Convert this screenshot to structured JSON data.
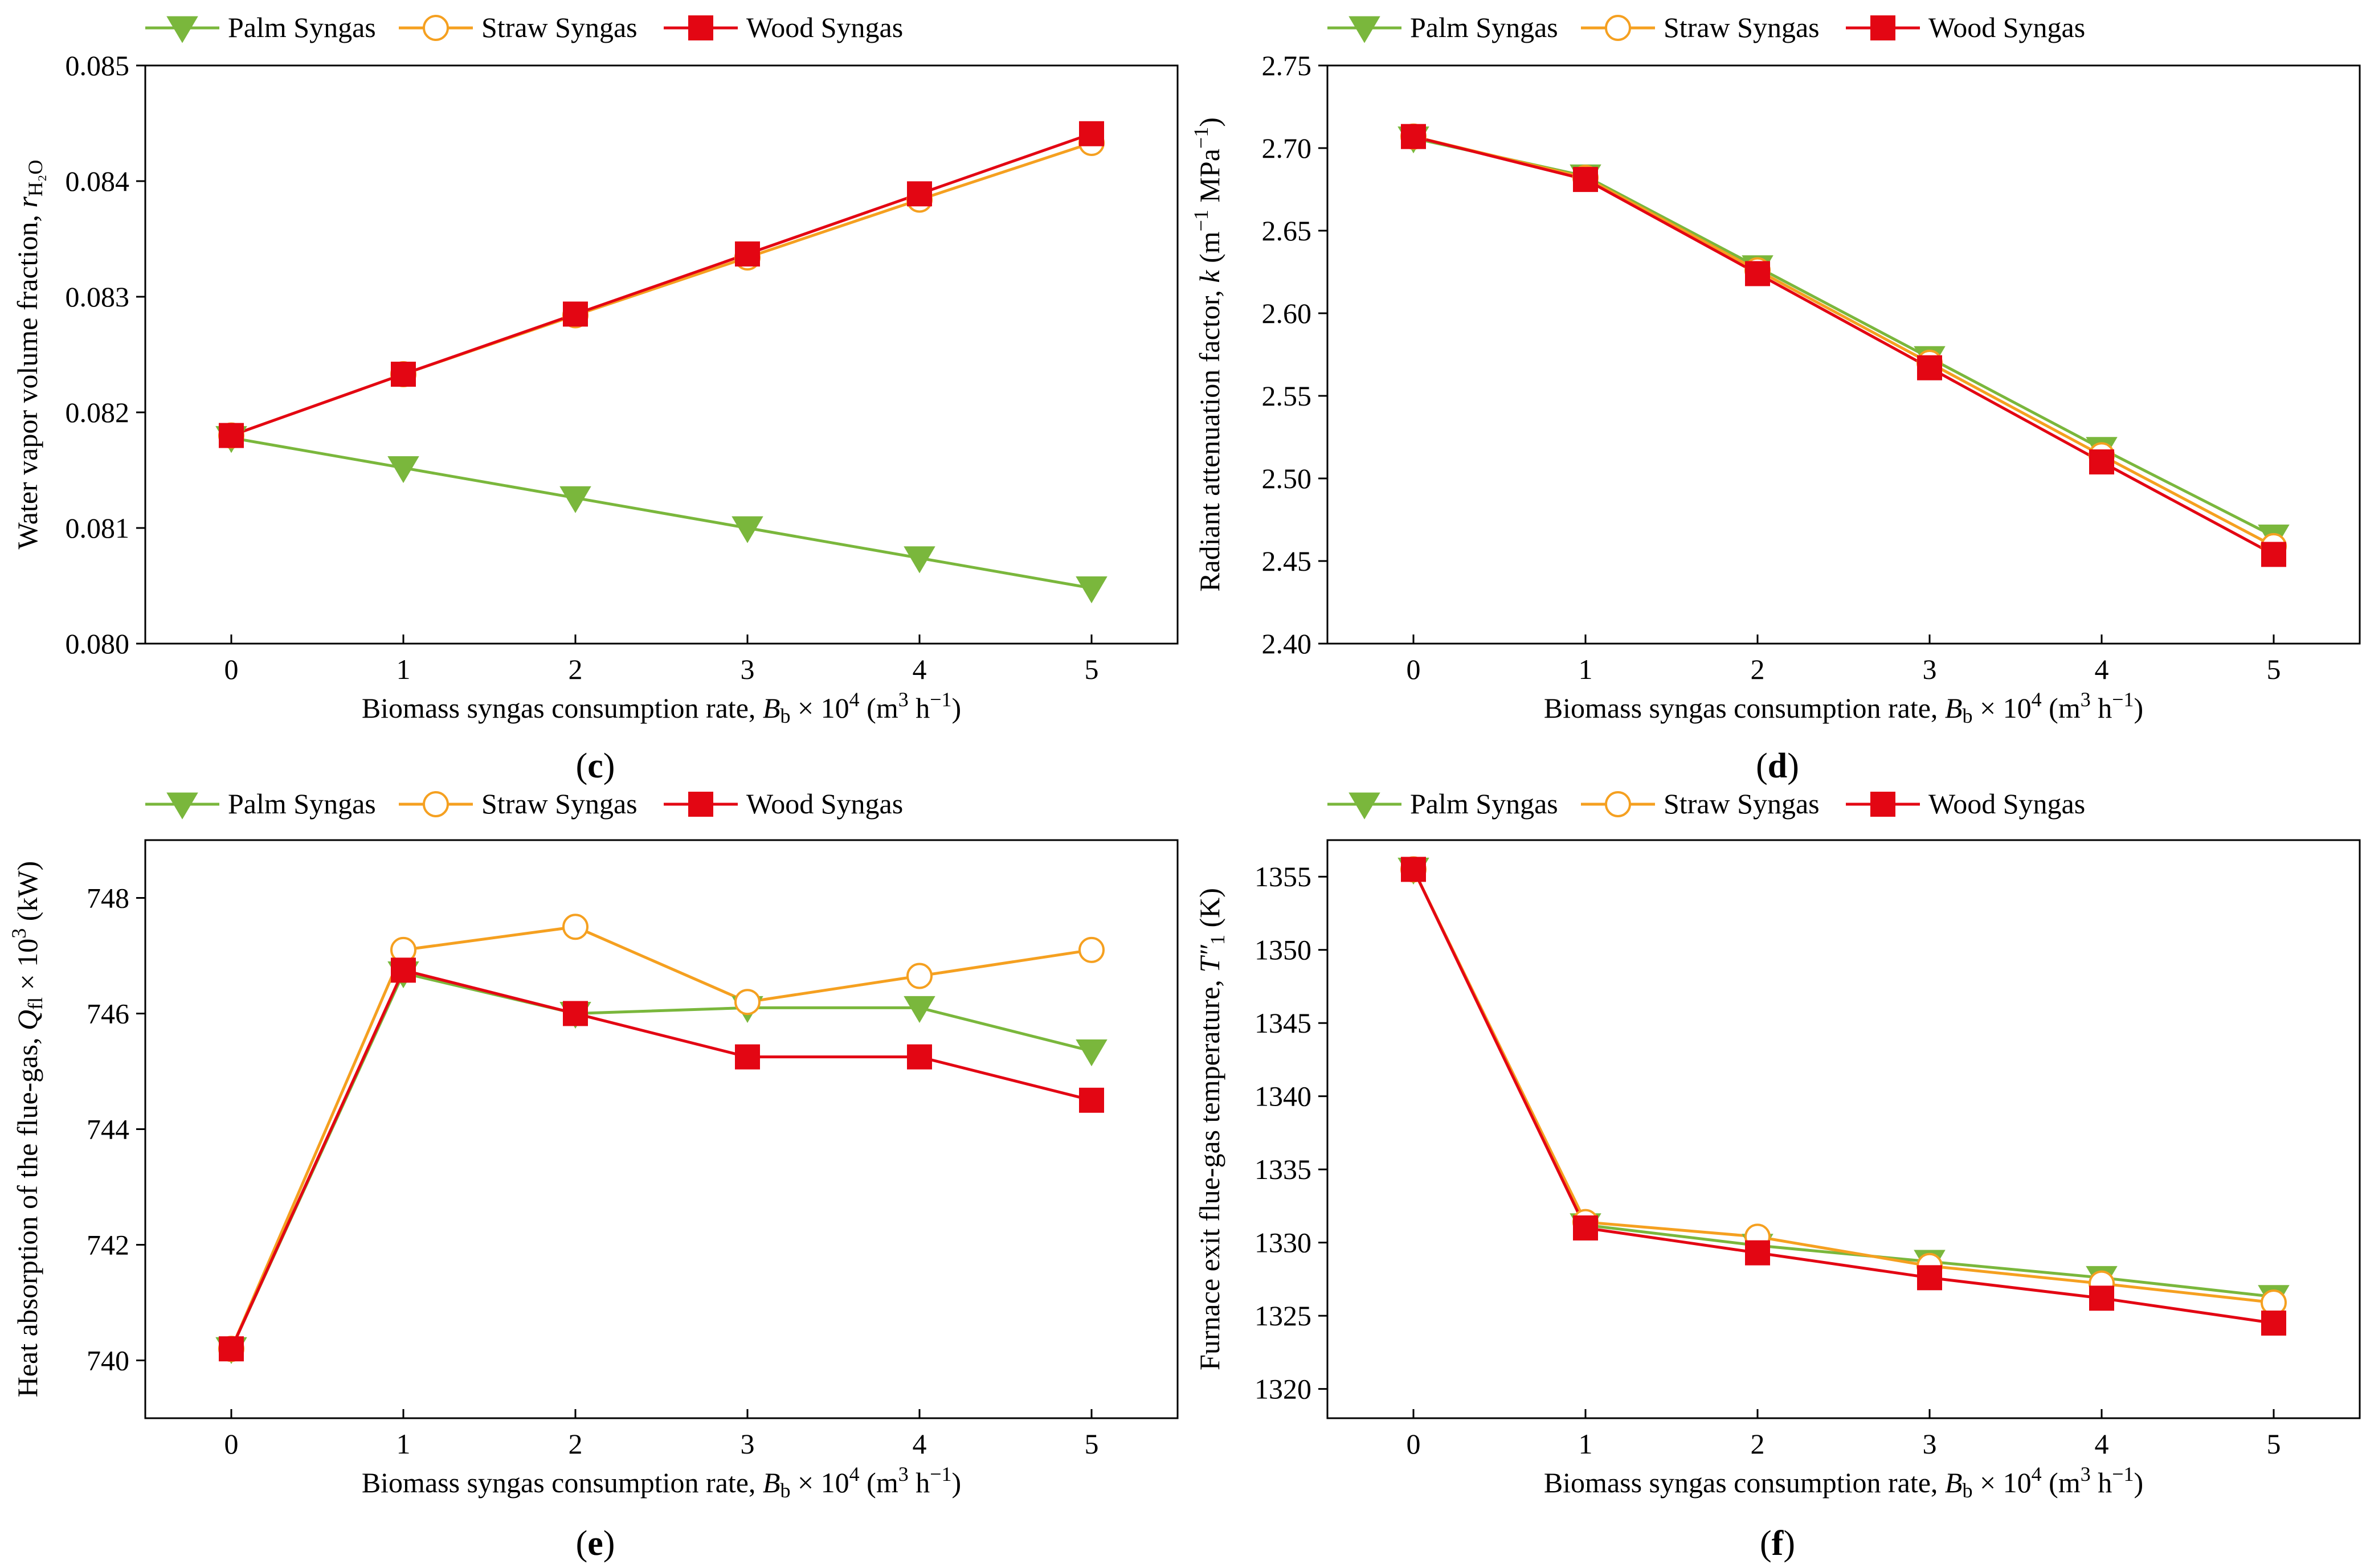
{
  "chart_data": [
    {
      "type": "line",
      "panel_label": "c",
      "x": [
        0,
        1,
        2,
        3,
        4,
        5
      ],
      "xlim": [
        -0.5,
        5.5
      ],
      "ylim": [
        0.08,
        0.085
      ],
      "yticks": [
        "0.080",
        "0.081",
        "0.082",
        "0.083",
        "0.084",
        "0.085"
      ],
      "xlabel": {
        "main": "Biomass syngas consumption rate, ",
        "var": "B",
        "sub": "b",
        "mid": " × 10",
        "sup": "4",
        "unit_a": " (m",
        "unit_sup": "3",
        "unit_b": " h",
        "unit_sup2": "−1",
        "unit_c": ")"
      },
      "ylabel": {
        "main": "Water vapor volume fraction, ",
        "var": "r",
        "sub": "H₂O"
      },
      "legend": [
        "Palm Syngas",
        "Straw Syngas",
        "Wood Syngas"
      ],
      "series": [
        {
          "name": "Palm Syngas",
          "values": [
            0.08178,
            0.08152,
            0.08126,
            0.081,
            0.08074,
            0.08048
          ]
        },
        {
          "name": "Straw Syngas",
          "values": [
            0.0818,
            0.08233,
            0.08284,
            0.08334,
            0.08384,
            0.08433
          ]
        },
        {
          "name": "Wood Syngas",
          "values": [
            0.0818,
            0.08233,
            0.08285,
            0.08337,
            0.08389,
            0.08441
          ]
        }
      ]
    },
    {
      "type": "line",
      "panel_label": "d",
      "x": [
        0,
        1,
        2,
        3,
        4,
        5
      ],
      "xlim": [
        -0.5,
        5.5
      ],
      "ylim": [
        2.4,
        2.75
      ],
      "yticks": [
        "2.40",
        "2.45",
        "2.50",
        "2.55",
        "2.60",
        "2.65",
        "2.70",
        "2.75"
      ],
      "xlabel": {
        "main": "Biomass syngas consumption rate, ",
        "var": "B",
        "sub": "b",
        "mid": " × 10",
        "sup": "4",
        "unit_a": " (m",
        "unit_sup": "3",
        "unit_b": " h",
        "unit_sup2": "−1",
        "unit_c": ")"
      },
      "ylabel": {
        "main": "Radiant attenuation factor, ",
        "var": "k",
        "unit_a": " (m",
        "unit_sup": "−1",
        "unit_b": " MPa",
        "unit_sup2": "−1",
        "unit_c": ")"
      },
      "legend": [
        "Palm Syngas",
        "Straw Syngas",
        "Wood Syngas"
      ],
      "series": [
        {
          "name": "Palm Syngas",
          "values": [
            2.706,
            2.683,
            2.628,
            2.573,
            2.518,
            2.465
          ]
        },
        {
          "name": "Straw Syngas",
          "values": [
            2.707,
            2.682,
            2.626,
            2.57,
            2.514,
            2.459
          ]
        },
        {
          "name": "Wood Syngas",
          "values": [
            2.707,
            2.681,
            2.624,
            2.567,
            2.51,
            2.454
          ]
        }
      ]
    },
    {
      "type": "line",
      "panel_label": "e",
      "x": [
        0,
        1,
        2,
        3,
        4,
        5
      ],
      "xlim": [
        -0.5,
        5.5
      ],
      "ylim": [
        739.0,
        749.0
      ],
      "yticks": [
        "740",
        "742",
        "744",
        "746",
        "748"
      ],
      "ytick_values": [
        740,
        742,
        744,
        746,
        748
      ],
      "xlabel": {
        "main": "Biomass syngas consumption rate, ",
        "var": "B",
        "sub": "b",
        "mid": " × 10",
        "sup": "4",
        "unit_a": " (m",
        "unit_sup": "3",
        "unit_b": " h",
        "unit_sup2": "−1",
        "unit_c": ")"
      },
      "ylabel": {
        "main": "Heat absorption of the flue-gas, ",
        "var": "Q",
        "sub": "fl",
        "mid": " × 10",
        "sup": "3",
        "unit_a": " (kW)"
      },
      "legend": [
        "Palm Syngas",
        "Straw Syngas",
        "Wood Syngas"
      ],
      "series": [
        {
          "name": "Palm Syngas",
          "values": [
            740.2,
            746.7,
            746.0,
            746.1,
            746.1,
            745.35
          ]
        },
        {
          "name": "Straw Syngas",
          "values": [
            740.2,
            747.1,
            747.5,
            746.2,
            746.65,
            747.1
          ]
        },
        {
          "name": "Wood Syngas",
          "values": [
            740.2,
            746.75,
            746.0,
            745.25,
            745.25,
            744.5
          ]
        }
      ]
    },
    {
      "type": "line",
      "panel_label": "f",
      "x": [
        0,
        1,
        2,
        3,
        4,
        5
      ],
      "xlim": [
        -0.5,
        5.5
      ],
      "ylim": [
        1318.0,
        1357.5
      ],
      "yticks": [
        "1320",
        "1325",
        "1330",
        "1335",
        "1340",
        "1345",
        "1350",
        "1355"
      ],
      "ytick_values": [
        1320,
        1325,
        1330,
        1335,
        1340,
        1345,
        1350,
        1355
      ],
      "xlabel": {
        "main": "Biomass syngas consumption rate, ",
        "var": "B",
        "sub": "b",
        "mid": " × 10",
        "sup": "4",
        "unit_a": " (m",
        "unit_sup": "3",
        "unit_b": " h",
        "unit_sup2": "−1",
        "unit_c": ")"
      },
      "ylabel": {
        "main": "Furnace exit flue-gas temperature, ",
        "var": "T",
        "sub": "1",
        "prime": "″",
        "unit_a": " (K)"
      },
      "legend": [
        "Palm Syngas",
        "Straw Syngas",
        "Wood Syngas"
      ],
      "series": [
        {
          "name": "Palm Syngas",
          "values": [
            1355.5,
            1331.2,
            1329.8,
            1328.7,
            1327.6,
            1326.3
          ]
        },
        {
          "name": "Straw Syngas",
          "values": [
            1355.5,
            1331.4,
            1330.4,
            1328.4,
            1327.2,
            1325.9
          ]
        },
        {
          "name": "Wood Syngas",
          "values": [
            1355.5,
            1331.0,
            1329.3,
            1327.6,
            1326.2,
            1324.5
          ]
        }
      ]
    }
  ],
  "colors": {
    "palm": "#7ab73c",
    "straw": "#f5a020",
    "wood": "#e30613",
    "axis": "#000000"
  }
}
